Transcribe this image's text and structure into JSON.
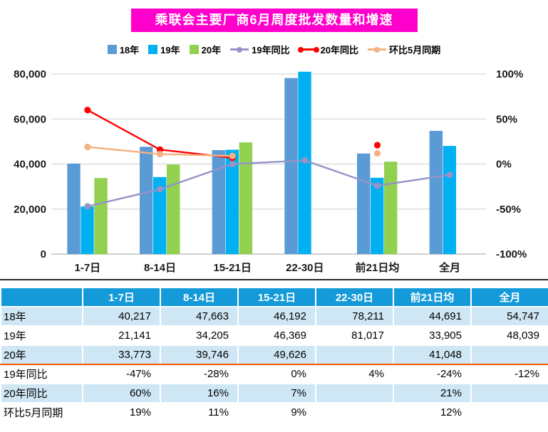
{
  "title": "乘联会主要厂商6月周度批发数量和增速",
  "colors": {
    "title_bg": "#ff00cc",
    "table_header_bg": "#149ad8",
    "table_stripe": "#cfe7f5",
    "table_divider": "#ff5500",
    "bar_18": "#5b9bd5",
    "bar_19": "#00b0f0",
    "bar_20": "#92d050",
    "line_19yoy": "#9494c8",
    "line_20yoy": "#ff0000",
    "line_mom": "#f4b183"
  },
  "legend": [
    {
      "label": "18年",
      "marker": "square",
      "color": "#5b9bd5"
    },
    {
      "label": "19年",
      "marker": "square",
      "color": "#00b0f0"
    },
    {
      "label": "20年",
      "marker": "square",
      "color": "#92d050"
    },
    {
      "label": "19年同比",
      "marker": "line-dot",
      "color": "#9494c8"
    },
    {
      "label": "20年同比",
      "marker": "line-2dot",
      "color": "#ff0000"
    },
    {
      "label": "环比5月同期",
      "marker": "line-dot",
      "color": "#f4b183"
    }
  ],
  "chart_data": {
    "type": "bar+line",
    "title": "乘联会主要厂商6月周度批发数量和增速",
    "categories": [
      "1-7日",
      "8-14日",
      "15-21日",
      "22-30日",
      "前21日均",
      "全月"
    ],
    "bar_series": [
      {
        "name": "18年",
        "color": "#5b9bd5",
        "axis": "left",
        "values": [
          40217,
          47663,
          46192,
          78211,
          44691,
          54747
        ]
      },
      {
        "name": "19年",
        "color": "#00b0f0",
        "axis": "left",
        "values": [
          21141,
          34205,
          46369,
          81017,
          33905,
          48039
        ]
      },
      {
        "name": "20年",
        "color": "#92d050",
        "axis": "left",
        "values": [
          33773,
          39746,
          49626,
          null,
          41048,
          null
        ]
      }
    ],
    "line_series": [
      {
        "name": "19年同比",
        "color": "#9494c8",
        "axis": "right",
        "values": [
          -47,
          -28,
          0,
          4,
          -24,
          -12
        ]
      },
      {
        "name": "20年同比",
        "color": "#ff0000",
        "axis": "right",
        "values": [
          60,
          16,
          7,
          null,
          21,
          null
        ]
      },
      {
        "name": "环比5月同期",
        "color": "#f4b183",
        "axis": "right",
        "values": [
          19,
          11,
          9,
          null,
          12,
          null
        ]
      }
    ],
    "left_axis": {
      "min": 0,
      "max": 80000,
      "ticks": [
        {
          "value": 0,
          "label": "0"
        },
        {
          "value": 20000,
          "label": "20,000"
        },
        {
          "value": 40000,
          "label": "40,000"
        },
        {
          "value": 60000,
          "label": "60,000"
        },
        {
          "value": 80000,
          "label": "80,000"
        }
      ]
    },
    "right_axis": {
      "min": -100,
      "max": 100,
      "ticks": [
        {
          "value": -100,
          "label": "-100%"
        },
        {
          "value": -50,
          "label": "-50%"
        },
        {
          "value": 0,
          "label": "0%"
        },
        {
          "value": 50,
          "label": "50%"
        },
        {
          "value": 100,
          "label": "100%"
        }
      ]
    },
    "grid": true,
    "legend_position": "top"
  },
  "table": {
    "header": [
      "",
      "1-7日",
      "8-14日",
      "15-21日",
      "22-30日",
      "前21日均",
      "全月"
    ],
    "rows": [
      {
        "label": "18年",
        "cells": [
          "40,217",
          "47,663",
          "46,192",
          "78,211",
          "44,691",
          "54,747"
        ]
      },
      {
        "label": "19年",
        "cells": [
          "21,141",
          "34,205",
          "46,369",
          "81,017",
          "33,905",
          "48,039"
        ]
      },
      {
        "label": "20年",
        "cells": [
          "33,773",
          "39,746",
          "49,626",
          "",
          "41,048",
          ""
        ]
      },
      {
        "label": "19年同比",
        "cells": [
          "-47%",
          "-28%",
          "0%",
          "4%",
          "-24%",
          "-12%"
        ]
      },
      {
        "label": "20年同比",
        "cells": [
          "60%",
          "16%",
          "7%",
          "",
          "21%",
          ""
        ]
      },
      {
        "label": "环比5月同期",
        "cells": [
          "19%",
          "11%",
          "9%",
          "",
          "12%",
          ""
        ]
      }
    ]
  }
}
